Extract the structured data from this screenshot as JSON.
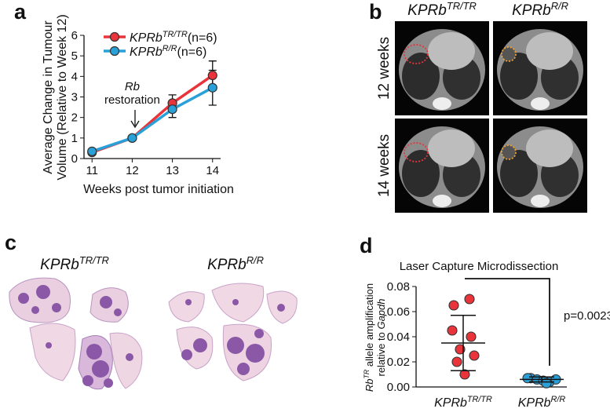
{
  "panel_letters": [
    "a",
    "b",
    "c",
    "d"
  ],
  "chart_data": [
    {
      "type": "line",
      "xlabel": "Weeks post tumor initiation",
      "ylabel": [
        "Average Change in Tumour",
        "Volume (Relative to Week 12)"
      ],
      "x": [
        11,
        12,
        13,
        14
      ],
      "xlim": [
        10.8,
        14.2
      ],
      "xticks": [
        11,
        12,
        13,
        14
      ],
      "ylim": [
        0,
        6
      ],
      "yticks": [
        0,
        1,
        2,
        3,
        4,
        5,
        6
      ],
      "annotation": {
        "italic": "Rb",
        "text": "restoration",
        "x": 12
      },
      "series": [
        {
          "name": "KPRb",
          "name_sup": "TR/TR",
          "name_suffix": "(n=6)",
          "color": "#e8343a",
          "values": [
            0.3,
            1.0,
            2.7,
            4.05
          ],
          "errors": [
            null,
            null,
            0.4,
            0.7
          ]
        },
        {
          "name": "KPRb",
          "name_sup": "R/R",
          "name_suffix": "(n=6)",
          "color": "#2aa0d8",
          "values": [
            0.35,
            1.0,
            2.4,
            3.45
          ],
          "errors": [
            null,
            null,
            0.4,
            0.85
          ]
        }
      ]
    },
    {
      "type": "dotplot",
      "title": "Laser Capture Microdissection",
      "ylabel": [
        [
          "Rb",
          "TR",
          " allele amplification"
        ],
        [
          "relative to ",
          "Gapdh"
        ]
      ],
      "categories": [
        [
          "KPRb",
          "TR/TR"
        ],
        [
          "KPRb",
          "R/R"
        ]
      ],
      "colors": [
        "#e8343a",
        "#2aa0d8"
      ],
      "values": [
        [
          0.065,
          0.07,
          0.045,
          0.04,
          0.03,
          0.025,
          0.02,
          0.01
        ],
        [
          0.007,
          0.006,
          0.005,
          0.004,
          0.006,
          0.007,
          0.003
        ]
      ],
      "mean": [
        0.035,
        0.006
      ],
      "sd": [
        0.022,
        0.002
      ],
      "ylim": [
        0,
        0.08
      ],
      "yticks": [
        {
          "value": 0,
          "label": "0.00"
        },
        {
          "value": 0.02,
          "label": "0.02"
        },
        {
          "value": 0.04,
          "label": "0.04"
        },
        {
          "value": 0.06,
          "label": "0.06"
        },
        {
          "value": 0.08,
          "label": "0.08"
        }
      ],
      "p_value": "p=0.0023"
    }
  ],
  "ct_panel": {
    "columns": [
      [
        "KPRb",
        "TR/TR"
      ],
      [
        "KPRb",
        "R/R"
      ]
    ],
    "rows": [
      "12 weeks",
      "14 weeks"
    ]
  },
  "histology_panel": {
    "labels": [
      [
        "KPRb",
        "TR/TR"
      ],
      [
        "KPRb",
        "R/R"
      ]
    ]
  }
}
